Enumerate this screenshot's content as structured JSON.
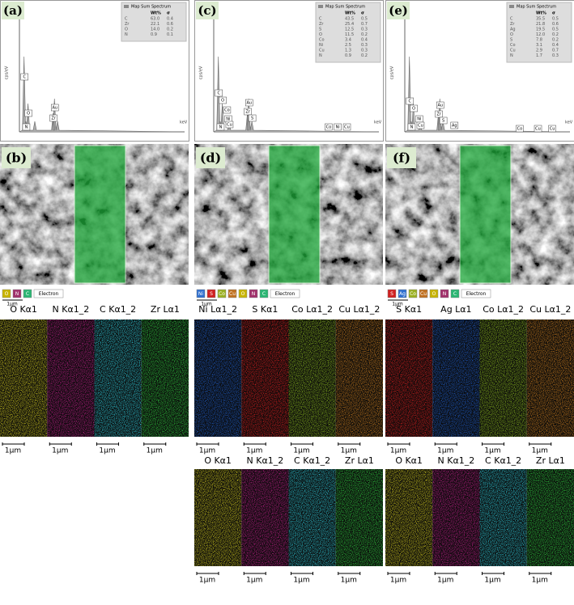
{
  "panels": [
    {
      "label": "(a)",
      "spectrum": {
        "legend": "Map Sum Spectrum",
        "headers": [
          "Wt%",
          "σ"
        ],
        "rows": [
          [
            "C",
            "63.0",
            "0.4"
          ],
          [
            "Zr",
            "22.1",
            "0.6"
          ],
          [
            "O",
            "14.0",
            "0.2"
          ],
          [
            "N",
            "0.9",
            "0.1"
          ]
        ],
        "y_axis": "cps/eV",
        "x_axis": "keV",
        "peaks": [
          "C",
          "O",
          "N",
          "Au",
          "Zr"
        ]
      },
      "sem": {
        "label": "(b)",
        "legend": [
          {
            "text": "O",
            "color": "#c8b400"
          },
          {
            "text": "N",
            "color": "#a0306a"
          },
          {
            "text": "C",
            "color": "#2bb673"
          },
          {
            "text": "Electron",
            "color": "#ffffff"
          }
        ],
        "scale": "1μm"
      },
      "maps": [
        [
          {
            "element": "O Kα1",
            "color": "#d8d020",
            "scale": "1μm"
          },
          {
            "element": "N Kα1_2",
            "color": "#c0208a",
            "scale": "1μm"
          },
          {
            "element": "C Kα1_2",
            "color": "#30d0e0",
            "scale": "1μm"
          },
          {
            "element": "Zr Lα1",
            "color": "#30d040",
            "scale": "1μm"
          }
        ]
      ]
    },
    {
      "label": "(c)",
      "spectrum": {
        "legend": "Map Sum Spectrum",
        "headers": [
          "Wt%",
          "σ"
        ],
        "rows": [
          [
            "C",
            "43.5",
            "0.5"
          ],
          [
            "Zr",
            "25.4",
            "0.7"
          ],
          [
            "S",
            "12.5",
            "0.3"
          ],
          [
            "O",
            "11.5",
            "0.2"
          ],
          [
            "Co",
            "3.4",
            "0.4"
          ],
          [
            "Ni",
            "2.5",
            "0.3"
          ],
          [
            "Cu",
            "1.3",
            "0.3"
          ],
          [
            "N",
            "0.9",
            "0.2"
          ]
        ],
        "y_axis": "cps/eV",
        "x_axis": "keV",
        "peaks": [
          "C",
          "O",
          "Co",
          "N",
          "Ni",
          "Cu",
          "Au",
          "Zr",
          "S",
          "Co",
          "Ni",
          "Cu"
        ]
      },
      "sem": {
        "label": "(d)",
        "legend": [
          {
            "text": "Ni",
            "color": "#2e6fd0"
          },
          {
            "text": "S",
            "color": "#d02020"
          },
          {
            "text": "Co",
            "color": "#9ab020"
          },
          {
            "text": "Cu",
            "color": "#c07020"
          },
          {
            "text": "O",
            "color": "#c8b400"
          },
          {
            "text": "N",
            "color": "#a0306a"
          },
          {
            "text": "C",
            "color": "#2bb673"
          },
          {
            "text": "Electron",
            "color": "#ffffff"
          }
        ],
        "scale": "1μm"
      },
      "maps": [
        [
          {
            "element": "Ni Lα1_2",
            "color": "#2060d0",
            "scale": "1μm"
          },
          {
            "element": "S Kα1",
            "color": "#e02020",
            "scale": "1μm"
          },
          {
            "element": "Co Lα1_2",
            "color": "#90c020",
            "scale": "1μm"
          },
          {
            "element": "Cu Lα1_2",
            "color": "#d08020",
            "scale": "1μm"
          }
        ],
        [
          {
            "element": "O Kα1",
            "color": "#d8d020",
            "scale": "1μm"
          },
          {
            "element": "N Kα1_2",
            "color": "#c0208a",
            "scale": "1μm"
          },
          {
            "element": "C Kα1_2",
            "color": "#30d0e0",
            "scale": "1μm"
          },
          {
            "element": "Zr Lα1",
            "color": "#30d040",
            "scale": "1μm"
          }
        ]
      ]
    },
    {
      "label": "(e)",
      "spectrum": {
        "legend": "Map Sum Spectrum",
        "headers": [
          "Wt%",
          "σ"
        ],
        "rows": [
          [
            "C",
            "35.5",
            "0.5"
          ],
          [
            "Zr",
            "21.8",
            "0.6"
          ],
          [
            "Ag",
            "19.5",
            "0.5"
          ],
          [
            "O",
            "12.0",
            "0.2"
          ],
          [
            "S",
            "7.8",
            "0.2"
          ],
          [
            "Co",
            "3.1",
            "0.4"
          ],
          [
            "Cu",
            "2.9",
            "0.7"
          ],
          [
            "N",
            "1.7",
            "0.3"
          ]
        ],
        "y_axis": "cps/eV",
        "x_axis": "keV",
        "peaks": [
          "C",
          "O",
          "Ni",
          "N",
          "Cu",
          "Au",
          "Zr",
          "S",
          "Ag",
          "Co",
          "Cu",
          "Cu"
        ]
      },
      "sem": {
        "label": "(f)",
        "legend": [
          {
            "text": "S",
            "color": "#d02020"
          },
          {
            "text": "Ag",
            "color": "#2e6fd0"
          },
          {
            "text": "Co",
            "color": "#9ab020"
          },
          {
            "text": "Cu",
            "color": "#c07020"
          },
          {
            "text": "O",
            "color": "#c8b400"
          },
          {
            "text": "N",
            "color": "#a0306a"
          },
          {
            "text": "C",
            "color": "#2bb673"
          },
          {
            "text": "Electron",
            "color": "#ffffff"
          }
        ],
        "scale": "1μm"
      },
      "maps": [
        [
          {
            "element": "S Kα1",
            "color": "#e02020",
            "scale": "1μm"
          },
          {
            "element": "Ag Lα1",
            "color": "#2060d0",
            "scale": "1μm"
          },
          {
            "element": "Co Lα1_2",
            "color": "#90c020",
            "scale": "1μm"
          },
          {
            "element": "Cu Lα1_2",
            "color": "#d08020",
            "scale": "1μm"
          }
        ],
        [
          {
            "element": "O Kα1",
            "color": "#d8d020",
            "scale": "1μm"
          },
          {
            "element": "N Kα1_2",
            "color": "#c0208a",
            "scale": "1μm"
          },
          {
            "element": "C Kα1_2",
            "color": "#30d0e0",
            "scale": "1μm"
          },
          {
            "element": "Zr Lα1",
            "color": "#30d040",
            "scale": "1μm"
          }
        ]
      ]
    }
  ]
}
